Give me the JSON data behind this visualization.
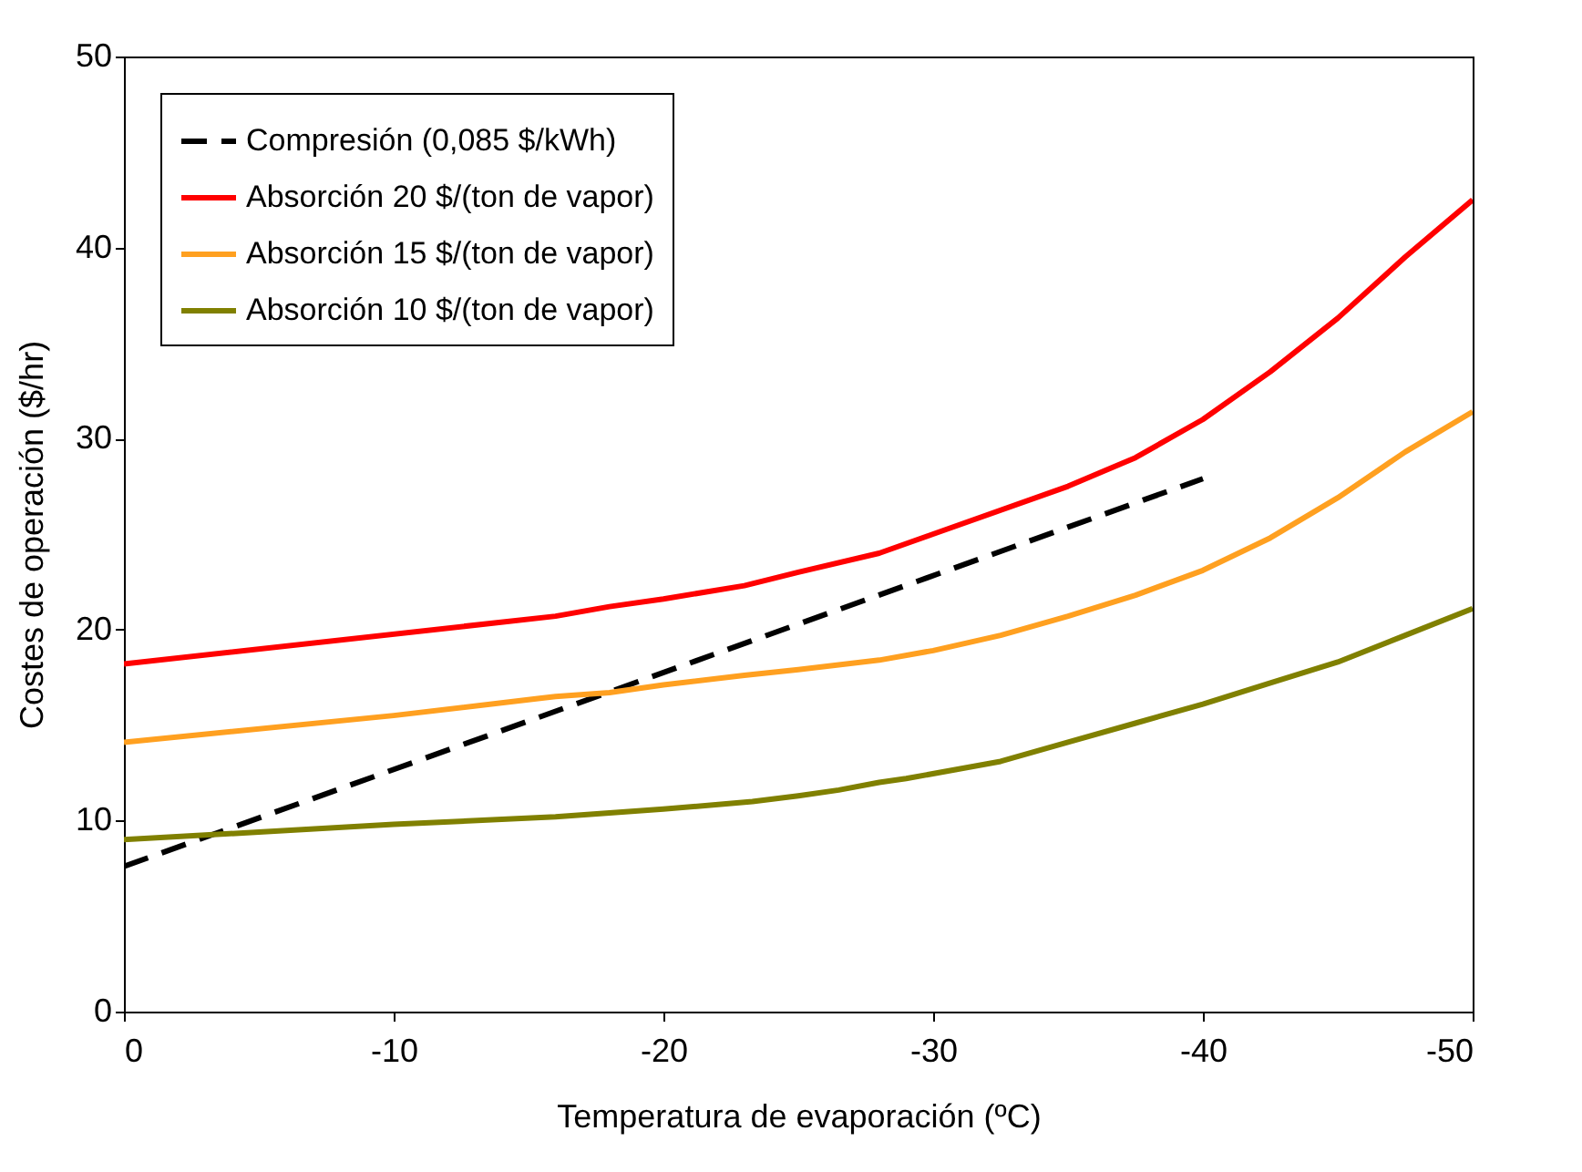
{
  "chart_data": {
    "type": "line",
    "xlabel": "Temperatura de evaporación (ºC)",
    "ylabel": "Costes de operación ($/hr)",
    "xlim": [
      0,
      -50
    ],
    "xticks": [
      0,
      -10,
      -20,
      -30,
      -40,
      -50
    ],
    "ylim": [
      0,
      50
    ],
    "yticks": [
      0,
      10,
      20,
      30,
      40,
      50
    ],
    "grid": false,
    "legend": "top left",
    "series": [
      {
        "name": "Compresión (0,085 $/kWh)",
        "color": "#000000",
        "line_style": "dashed",
        "x": [
          0,
          -40
        ],
        "values": [
          7.6,
          27.9
        ]
      },
      {
        "name": "Absorción 20 $/(ton de vapor)",
        "color": "#ff0000",
        "line_style": "solid",
        "x": [
          0,
          -16,
          -18,
          -20,
          -23,
          -25,
          -28,
          -30,
          -35,
          -37.5,
          -40,
          -42.5,
          -45,
          -47.5,
          -50
        ],
        "values": [
          18.2,
          20.7,
          21.2,
          21.6,
          22.3,
          23.0,
          24.0,
          25.0,
          27.5,
          29.0,
          31.0,
          33.5,
          36.3,
          39.5,
          42.5
        ]
      },
      {
        "name": "Absorción 15 $/(ton de vapor)",
        "color": "#ffa020",
        "line_style": "solid",
        "x": [
          0,
          -10,
          -16,
          -18,
          -20,
          -23,
          -25,
          -28,
          -30,
          -32.5,
          -35,
          -37.5,
          -40,
          -42.5,
          -45,
          -47.5,
          -50
        ],
        "values": [
          14.1,
          15.5,
          16.5,
          16.7,
          17.1,
          17.6,
          17.9,
          18.4,
          18.9,
          19.7,
          20.7,
          21.8,
          23.1,
          24.8,
          26.9,
          29.3,
          31.4
        ]
      },
      {
        "name": "Absorción 10 $/(ton de vapor)",
        "color": "#808000",
        "line_style": "solid",
        "x": [
          0,
          -5,
          -10,
          -16,
          -20,
          -23.3,
          -25,
          -26.5,
          -28,
          -29,
          -32.5,
          -35,
          -37.5,
          -40,
          -42.5,
          -45,
          -47.5,
          -50
        ],
        "values": [
          9.0,
          9.4,
          9.8,
          10.2,
          10.6,
          11.0,
          11.3,
          11.6,
          12.0,
          12.2,
          13.1,
          14.1,
          15.1,
          16.1,
          17.2,
          18.3,
          19.7,
          21.1
        ]
      }
    ]
  }
}
